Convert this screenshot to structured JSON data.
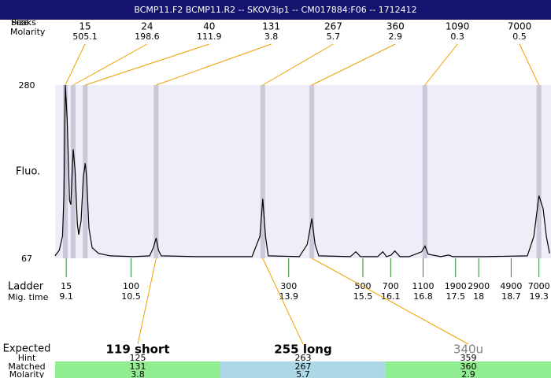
{
  "title": "BCMP11.F2  BCMP11.R2 -- SKOV3ip1 -- CM017884:F06 -- 1712412",
  "chart_data": {
    "type": "line",
    "labels": {
      "peaks": "Peaks",
      "size": "Size",
      "molarity": "Molarity",
      "fluo": "Fluo.",
      "ladder": "Ladder",
      "mig_time": "Mig. time"
    },
    "ylim": [
      67,
      280
    ],
    "yticks": [
      67,
      280
    ],
    "xlim": [
      8.86,
      19.56
    ],
    "xticks": [
      9.1,
      10.5,
      13.9,
      15.5,
      16.1,
      16.8,
      17.5,
      18,
      18.7,
      19.3
    ],
    "ladder": {
      "sizes": [
        15,
        100,
        300,
        500,
        700,
        1100,
        1900,
        2900,
        4900,
        7000
      ],
      "color": "#2e8b2e"
    },
    "color": "#000000",
    "plot_background": "#eeeef8",
    "band_color": "#c9c9d9",
    "leader_color": "#f0a000",
    "x": [
      8.86,
      8.95,
      9.02,
      9.05,
      9.08,
      9.12,
      9.17,
      9.2,
      9.25,
      9.29,
      9.34,
      9.37,
      9.42,
      9.47,
      9.51,
      9.54,
      9.59,
      9.66,
      9.8,
      10.05,
      10.56,
      10.9,
      10.98,
      11.04,
      11.09,
      11.15,
      11.92,
      13.11,
      13.28,
      13.34,
      13.4,
      13.46,
      14.13,
      14.3,
      14.4,
      14.47,
      14.55,
      15.23,
      15.35,
      15.45,
      15.82,
      15.93,
      16.01,
      16.11,
      16.19,
      16.3,
      16.5,
      16.77,
      16.84,
      16.91,
      17.18,
      17.35,
      17.44,
      18.12,
      19.05,
      19.19,
      19.3,
      19.39,
      19.46,
      19.53
    ],
    "values": [
      70,
      77,
      94,
      143,
      280,
      239,
      138,
      133,
      201,
      176,
      109,
      96,
      113,
      167,
      184,
      167,
      104,
      80,
      73,
      70,
      69,
      70,
      80,
      92,
      77,
      70,
      69,
      69,
      94,
      140,
      94,
      70,
      69,
      84,
      116,
      84,
      70,
      69,
      75,
      69,
      69,
      75,
      69,
      71,
      76,
      69,
      69,
      75,
      82,
      72,
      69,
      71,
      69,
      69,
      70,
      94,
      144,
      128,
      94,
      73
    ],
    "peaks": [
      {
        "size": 15,
        "molarity": 505.1,
        "time": 9.08
      },
      {
        "size": 24,
        "molarity": 198.6,
        "time": 9.25
      },
      {
        "size": 40,
        "molarity": 111.9,
        "time": 9.51
      },
      {
        "size": 131,
        "molarity": 3.8,
        "time": 11.04
      },
      {
        "size": 267,
        "molarity": 5.7,
        "time": 13.34
      },
      {
        "size": 360,
        "molarity": 2.9,
        "time": 14.4
      },
      {
        "size": 1090,
        "molarity": 0.3,
        "time": 16.84
      },
      {
        "size": 7000,
        "molarity": 0.5,
        "time": 19.3
      }
    ]
  },
  "expected": {
    "labels": {
      "expected": "Expected",
      "hint": "Hint",
      "matched": "Matched",
      "molarity": "Molarity"
    },
    "items": [
      {
        "name": "119 short",
        "hint": 125,
        "matched": 131,
        "molarity": 3.8,
        "fill": "#90ee90",
        "text_color": "#000000"
      },
      {
        "name": "255 long",
        "hint": 263,
        "matched": 267,
        "molarity": 5.7,
        "fill": "#add8e6",
        "text_color": "#000000"
      },
      {
        "name": "340u",
        "hint": 359,
        "matched": 360,
        "molarity": 2.9,
        "fill": "#90ee90",
        "text_color": "#808080"
      }
    ]
  }
}
